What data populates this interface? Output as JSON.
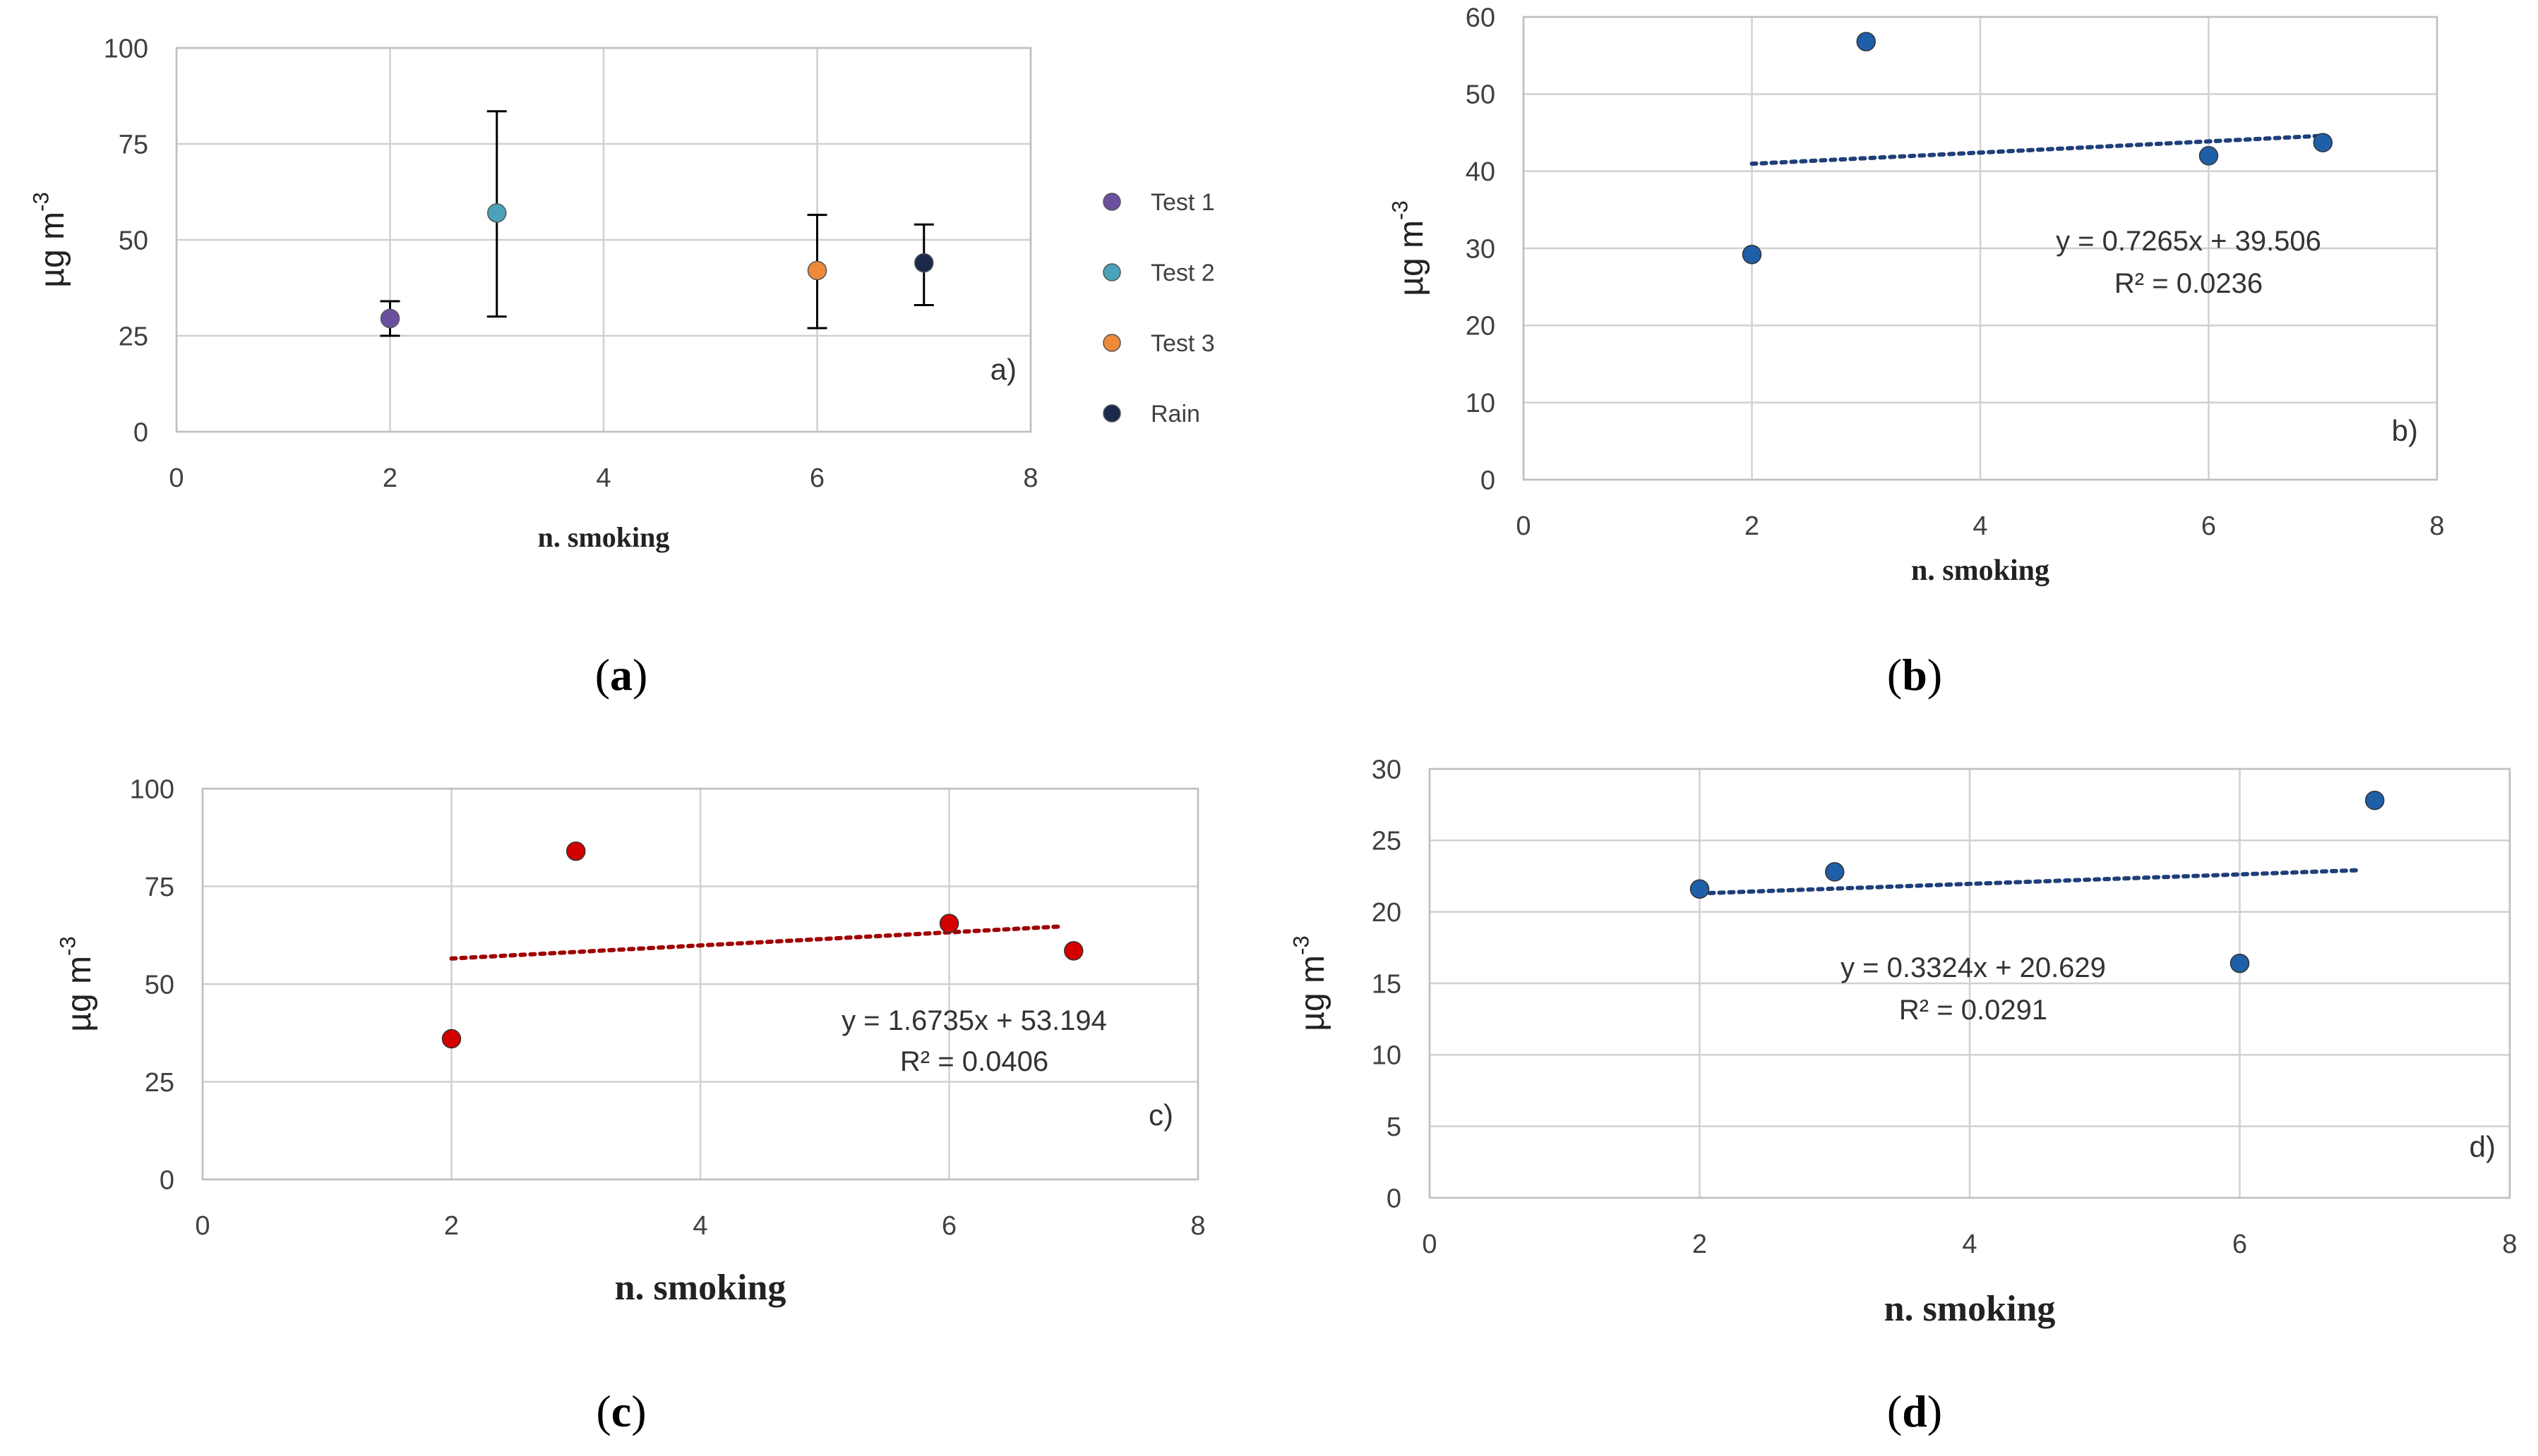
{
  "colors": {
    "grid": "#d0d0d0",
    "axis": "#bfbfbf",
    "test1": "#6b4fa0",
    "test2": "#4aa3b8",
    "test3": "#ed8a3a",
    "rain": "#1b2a4a",
    "blue_point": "#1f5fa8",
    "blue_trend": "#1f3f78",
    "red_point": "#d40000",
    "red_trend": "#a00000"
  },
  "chart_data": [
    {
      "id": "a",
      "type": "scatter",
      "xlabel": "n. smoking",
      "ylabel": "µg m",
      "ylabel_sup": "-3",
      "xlim": [
        0,
        8
      ],
      "ylim": [
        0,
        100
      ],
      "xticks": [
        0,
        2,
        4,
        6,
        8
      ],
      "yticks": [
        0,
        25,
        50,
        75,
        100
      ],
      "panel_label": "a)",
      "caption": "(a)",
      "legend_position": "right",
      "series": [
        {
          "name": "Test 1",
          "color_key": "test1",
          "x": 2,
          "y": 29.5,
          "err_low": 25,
          "err_high": 34
        },
        {
          "name": "Test 2",
          "color_key": "test2",
          "x": 3,
          "y": 57,
          "err_low": 30,
          "err_high": 83.5
        },
        {
          "name": "Test 3",
          "color_key": "test3",
          "x": 6,
          "y": 42,
          "err_low": 27,
          "err_high": 56.5
        },
        {
          "name": "Rain",
          "color_key": "rain",
          "x": 7,
          "y": 44,
          "err_low": 33,
          "err_high": 54
        }
      ]
    },
    {
      "id": "b",
      "type": "scatter",
      "xlabel": "n. smoking",
      "ylabel": "µg m",
      "ylabel_sup": "-3",
      "xlim": [
        0,
        8
      ],
      "ylim": [
        0,
        60
      ],
      "xticks": [
        0,
        2,
        4,
        6,
        8
      ],
      "yticks": [
        0,
        10,
        20,
        30,
        40,
        50,
        60
      ],
      "panel_label": "b)",
      "caption": "(b)",
      "point_color_key": "blue_point",
      "trend_color_key": "blue_trend",
      "points": [
        {
          "x": 2,
          "y": 29.2
        },
        {
          "x": 3,
          "y": 56.8
        },
        {
          "x": 6,
          "y": 42
        },
        {
          "x": 7,
          "y": 43.7
        }
      ],
      "trendline": {
        "slope": 0.7265,
        "intercept": 39.506,
        "x_range": [
          2,
          7
        ]
      },
      "equation": "y = 0.7265x + 39.506",
      "r2": "R² = 0.0236"
    },
    {
      "id": "c",
      "type": "scatter",
      "xlabel": "n. smoking",
      "ylabel": "µg m",
      "ylabel_sup": "-3",
      "xlim": [
        0,
        8
      ],
      "ylim": [
        0,
        100
      ],
      "xticks": [
        0,
        2,
        4,
        6,
        8
      ],
      "yticks": [
        0,
        25,
        50,
        75,
        100
      ],
      "panel_label": "c)",
      "caption": "(c)",
      "point_color_key": "red_point",
      "trend_color_key": "red_trend",
      "points": [
        {
          "x": 2,
          "y": 36
        },
        {
          "x": 3,
          "y": 84
        },
        {
          "x": 6,
          "y": 65.5
        },
        {
          "x": 7,
          "y": 58.5
        }
      ],
      "trendline": {
        "slope": 1.6735,
        "intercept": 53.194,
        "x_range": [
          2,
          6.9
        ]
      },
      "equation": "y = 1.6735x + 53.194",
      "r2": "R² = 0.0406"
    },
    {
      "id": "d",
      "type": "scatter",
      "xlabel": "n. smoking",
      "ylabel": "µg m",
      "ylabel_sup": "-3",
      "xlim": [
        0,
        8
      ],
      "ylim": [
        0,
        30
      ],
      "xticks": [
        0,
        2,
        4,
        6,
        8
      ],
      "yticks": [
        0,
        5,
        10,
        15,
        20,
        25,
        30
      ],
      "panel_label": "d)",
      "caption": "(d)",
      "point_color_key": "blue_point",
      "trend_color_key": "blue_trend",
      "points": [
        {
          "x": 2,
          "y": 21.6
        },
        {
          "x": 3,
          "y": 22.8
        },
        {
          "x": 6,
          "y": 16.4
        },
        {
          "x": 7,
          "y": 27.8
        }
      ],
      "trendline": {
        "slope": 0.3324,
        "intercept": 20.629,
        "x_range": [
          2,
          6.9
        ]
      },
      "equation": "y = 0.3324x + 20.629",
      "r2": "R² = 0.0291"
    }
  ]
}
